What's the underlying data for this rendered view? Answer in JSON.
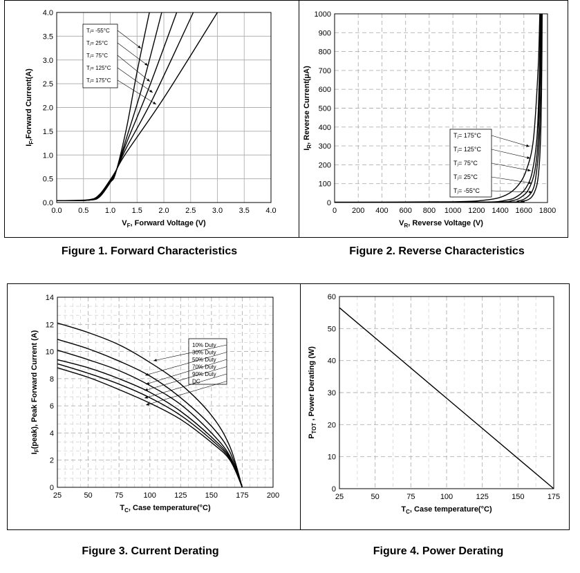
{
  "chart_data": [
    {
      "type": "line",
      "title": "Figure 1. Forward Characteristics",
      "xlabel_main": "V",
      "xlabel_sub": "F",
      "xlabel_rest": ", Forward Voltage (V)",
      "ylabel_main": "I",
      "ylabel_sub": "F",
      "ylabel_rest": ",Forward Current(A)",
      "xlim": [
        0,
        4
      ],
      "ylim": [
        0,
        4
      ],
      "xticks": [
        "0.0",
        "0.5",
        "1.0",
        "1.5",
        "2.0",
        "2.5",
        "3.0",
        "3.5",
        "4.0"
      ],
      "yticks": [
        "0.0",
        "0.5",
        "1.0",
        "1.5",
        "2.0",
        "2.5",
        "3.0",
        "3.5",
        "4.0"
      ],
      "grid": true,
      "legend_position": "top-left",
      "series": [
        {
          "name": "Tⱼ= -55°C",
          "x": [
            0.0,
            0.6,
            0.8,
            1.0,
            1.1,
            1.3,
            1.5,
            1.73
          ],
          "y": [
            0.04,
            0.05,
            0.12,
            0.42,
            0.62,
            1.55,
            2.75,
            4.0
          ]
        },
        {
          "name": "Tⱼ= 25°C",
          "x": [
            0.0,
            0.6,
            0.8,
            1.0,
            1.1,
            1.3,
            1.6,
            1.96
          ],
          "y": [
            0.04,
            0.05,
            0.12,
            0.43,
            0.63,
            1.35,
            2.45,
            4.0
          ]
        },
        {
          "name": "Tⱼ= 75°C",
          "x": [
            0.0,
            0.6,
            0.8,
            1.0,
            1.1,
            1.3,
            1.7,
            2.24
          ],
          "y": [
            0.04,
            0.05,
            0.13,
            0.44,
            0.64,
            1.25,
            2.35,
            4.0
          ]
        },
        {
          "name": "Tⱼ= 125°C",
          "x": [
            0.0,
            0.6,
            0.8,
            1.0,
            1.1,
            1.3,
            1.8,
            2.55
          ],
          "y": [
            0.04,
            0.05,
            0.15,
            0.46,
            0.65,
            1.15,
            2.2,
            4.0
          ]
        },
        {
          "name": "Tⱼ= 175°C",
          "x": [
            0.0,
            0.6,
            0.8,
            1.0,
            1.1,
            1.3,
            2.0,
            3.0
          ],
          "y": [
            0.04,
            0.06,
            0.17,
            0.48,
            0.66,
            1.05,
            2.2,
            4.0
          ]
        }
      ]
    },
    {
      "type": "line",
      "title": "Figure 2. Reverse Characteristics",
      "xlabel_main": "V",
      "xlabel_sub": "R",
      "xlabel_rest": ", Reverse Voltage (V)",
      "ylabel_main": "I",
      "ylabel_sub": "R",
      "ylabel_rest": ", Reverse Current(μA)",
      "xlim": [
        0,
        1800
      ],
      "ylim": [
        0,
        1000
      ],
      "xticks": [
        "0",
        "200",
        "400",
        "600",
        "800",
        "1000",
        "1200",
        "1400",
        "1600",
        "1800"
      ],
      "yticks": [
        "0",
        "100",
        "200",
        "300",
        "400",
        "500",
        "600",
        "700",
        "800",
        "900",
        "1000"
      ],
      "grid": true,
      "legend_position": "bottom-right",
      "series": [
        {
          "name": "Tⱼ= 175°C",
          "x": [
            0,
            1000,
            1300,
            1450,
            1550,
            1620,
            1680,
            1720,
            1735
          ],
          "y": [
            2,
            4,
            15,
            40,
            90,
            170,
            330,
            700,
            1000
          ]
        },
        {
          "name": "Tⱼ= 125°C",
          "x": [
            0,
            1200,
            1450,
            1550,
            1620,
            1670,
            1710,
            1730,
            1740
          ],
          "y": [
            1,
            2,
            12,
            35,
            80,
            160,
            340,
            650,
            1000
          ]
        },
        {
          "name": "Tⱼ= 75°C",
          "x": [
            0,
            1300,
            1500,
            1580,
            1640,
            1690,
            1720,
            1735,
            1745
          ],
          "y": [
            1,
            2,
            10,
            30,
            70,
            160,
            330,
            650,
            1000
          ]
        },
        {
          "name": "Tⱼ= 25°C",
          "x": [
            0,
            1400,
            1550,
            1620,
            1670,
            1700,
            1730,
            1742,
            1750
          ],
          "y": [
            1,
            2,
            8,
            25,
            60,
            130,
            320,
            620,
            1000
          ]
        },
        {
          "name": "Tⱼ= -55°C",
          "x": [
            0,
            1450,
            1580,
            1650,
            1690,
            1720,
            1740,
            1750,
            1755
          ],
          "y": [
            1,
            2,
            6,
            20,
            55,
            130,
            310,
            600,
            1000
          ]
        }
      ]
    },
    {
      "type": "line",
      "title": "Figure 3. Current Derating",
      "xlabel_main": "T",
      "xlabel_sub": "C",
      "xlabel_rest": ", Case temperature(°C)",
      "ylabel_main": "I",
      "ylabel_sub": "F",
      "ylabel_rest": "(peak), Peak Forward Current (A)",
      "xlim": [
        25,
        200
      ],
      "ylim": [
        0,
        14
      ],
      "xticks": [
        "25",
        "50",
        "75",
        "100",
        "125",
        "150",
        "175",
        "200"
      ],
      "yticks": [
        "0",
        "2",
        "4",
        "6",
        "8",
        "10",
        "12",
        "14"
      ],
      "grid": true,
      "legend_position": "center-right",
      "series": [
        {
          "name": "10% Duty",
          "x": [
            25,
            50,
            75,
            100,
            125,
            150,
            165,
            175
          ],
          "y": [
            12.1,
            11.4,
            10.5,
            9.2,
            7.6,
            5.3,
            3.0,
            0.0
          ]
        },
        {
          "name": "30% Duty",
          "x": [
            25,
            50,
            75,
            100,
            125,
            150,
            165,
            175
          ],
          "y": [
            10.9,
            10.2,
            9.3,
            8.2,
            6.6,
            4.5,
            2.6,
            0.0
          ]
        },
        {
          "name": "50% Duty",
          "x": [
            25,
            50,
            75,
            100,
            125,
            150,
            165,
            175
          ],
          "y": [
            10.1,
            9.4,
            8.6,
            7.5,
            6.1,
            4.0,
            2.3,
            0.0
          ]
        },
        {
          "name": "70% Duty",
          "x": [
            25,
            50,
            75,
            100,
            125,
            150,
            165,
            175
          ],
          "y": [
            9.4,
            8.8,
            8.0,
            7.0,
            5.6,
            3.7,
            2.2,
            0.0
          ]
        },
        {
          "name": "90% Duty",
          "x": [
            25,
            50,
            75,
            100,
            125,
            150,
            165,
            175
          ],
          "y": [
            9.1,
            8.4,
            7.6,
            6.6,
            5.3,
            3.5,
            2.1,
            0.0
          ]
        },
        {
          "name": "DC",
          "x": [
            25,
            50,
            75,
            100,
            125,
            150,
            165,
            175
          ],
          "y": [
            8.8,
            8.1,
            7.2,
            6.2,
            5.0,
            3.3,
            2.0,
            0.0
          ]
        }
      ]
    },
    {
      "type": "line",
      "title": "Figure 4. Power Derating",
      "xlabel_main": "T",
      "xlabel_sub": "C",
      "xlabel_rest": ", Case temperature(°C)",
      "ylabel_main": "P",
      "ylabel_sub": "TOT",
      "ylabel_rest": " , Power Derating (W)",
      "xlim": [
        25,
        175
      ],
      "ylim": [
        0,
        60
      ],
      "xticks": [
        "25",
        "50",
        "75",
        "100",
        "125",
        "150",
        "175"
      ],
      "yticks": [
        "0",
        "10",
        "20",
        "30",
        "40",
        "50",
        "60"
      ],
      "grid": true,
      "legend_position": "none",
      "series": [
        {
          "name": "",
          "x": [
            25,
            175
          ],
          "y": [
            56.5,
            0
          ]
        }
      ]
    }
  ]
}
